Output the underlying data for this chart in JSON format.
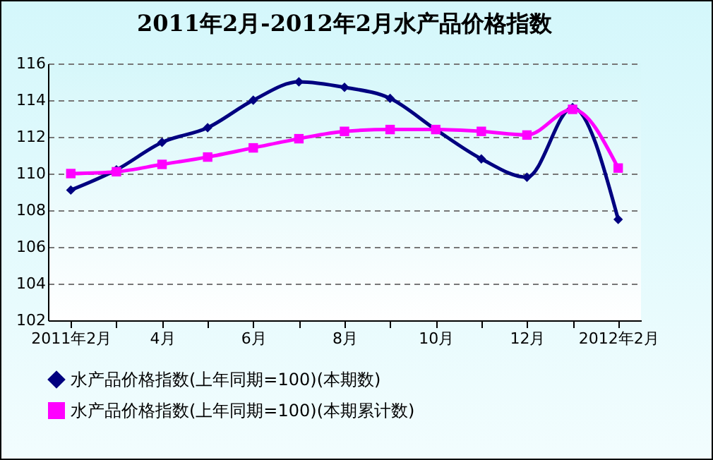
{
  "chart_data": {
    "type": "line",
    "title": "2011年2月-2012年2月水产品价格指数",
    "categories": [
      "2011年2月",
      null,
      "4月",
      null,
      "6月",
      null,
      "8月",
      null,
      "10月",
      null,
      "12月",
      null,
      "2012年2月"
    ],
    "series": [
      {
        "name": "水产品价格指数(上年同期=100)(本期数)",
        "color": "#000080",
        "marker": "diamond",
        "values": [
          109.1,
          110.2,
          111.7,
          112.5,
          114.0,
          115.0,
          114.7,
          114.1,
          112.4,
          110.8,
          109.8,
          113.6,
          107.5
        ]
      },
      {
        "name": "水产品价格指数(上年同期=100)(本期累计数)",
        "color": "#ff00ff",
        "marker": "square",
        "values": [
          110.0,
          110.1,
          110.5,
          110.9,
          111.4,
          111.9,
          112.3,
          112.4,
          112.4,
          112.3,
          112.1,
          113.5,
          110.3
        ]
      }
    ],
    "ylim": [
      102,
      116
    ],
    "yticks": [
      102,
      104,
      106,
      108,
      110,
      112,
      114,
      116
    ],
    "grid": "y",
    "legend": "bottom",
    "line_style": "solid"
  }
}
